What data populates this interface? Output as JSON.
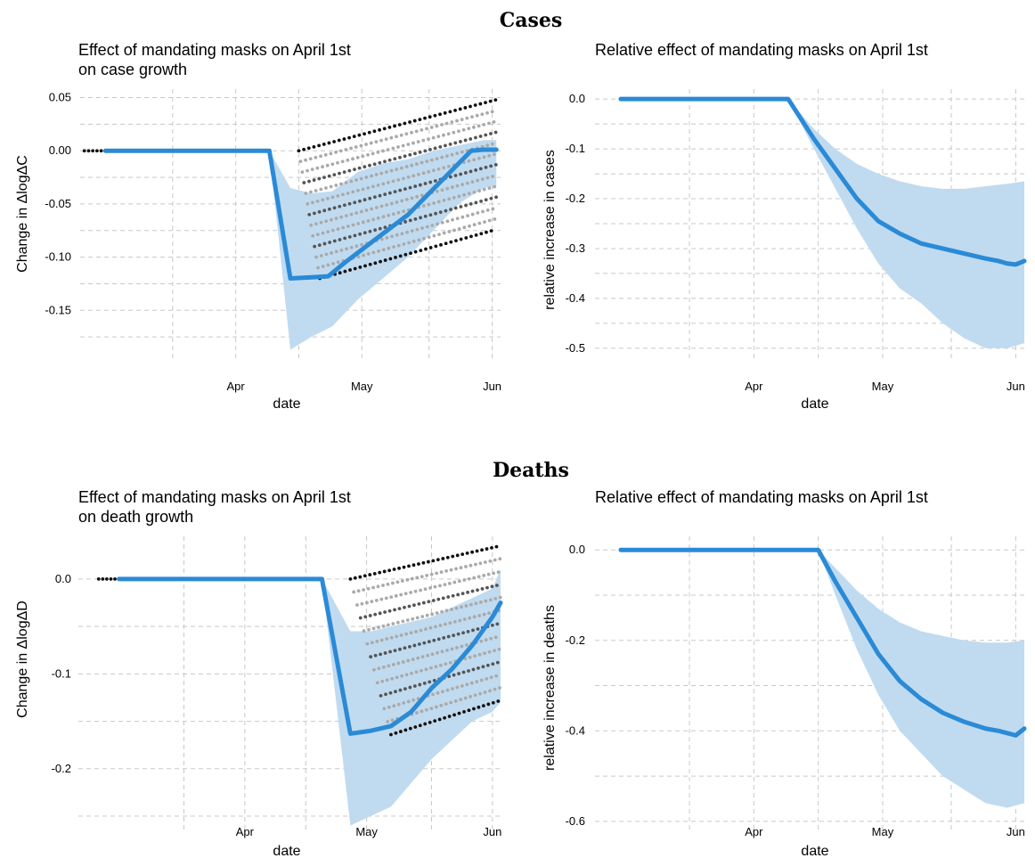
{
  "sections": [
    {
      "title": "Cases"
    },
    {
      "title": "Deaths"
    }
  ],
  "chart_data": [
    {
      "type": "line",
      "title": "Effect of mandating masks on April 1st",
      "subtitle": " on case growth",
      "xlabel": "date",
      "ylabel": "Change in ΔlogΔC",
      "x_ticks": [
        {
          "label": "Apr",
          "day": 31
        },
        {
          "label": "May",
          "day": 61
        },
        {
          "label": "Jun",
          "day": 92
        }
      ],
      "x_range_days": [
        -6,
        94
      ],
      "y_ticks": [
        0.05,
        0.0,
        -0.05,
        -0.1,
        -0.15
      ],
      "y_tick_labels": [
        "0.05",
        "0.00",
        "-0.05",
        "-0.10",
        "-0.15"
      ],
      "ylim": [
        -0.195,
        0.058
      ],
      "grid": true,
      "series": [
        {
          "role": "mean",
          "x_days": [
            0,
            39,
            44,
            49,
            53,
            57,
            62,
            67,
            72,
            77,
            82,
            87,
            90,
            93
          ],
          "y": [
            0.0,
            0.0,
            -0.12,
            -0.119,
            -0.118,
            -0.105,
            -0.09,
            -0.075,
            -0.06,
            -0.04,
            -0.02,
            0.0,
            0.001,
            0.001
          ]
        },
        {
          "role": "band",
          "x_days": [
            39,
            44,
            49,
            54,
            60,
            66,
            72,
            78,
            84,
            90,
            93
          ],
          "upper": [
            0.0,
            -0.035,
            -0.04,
            -0.038,
            -0.02,
            -0.012,
            -0.008,
            0.0,
            0.005,
            0.01,
            0.01
          ],
          "lower": [
            0.0,
            -0.187,
            -0.175,
            -0.165,
            -0.14,
            -0.12,
            -0.1,
            -0.075,
            -0.05,
            -0.035,
            -0.033
          ]
        },
        {
          "role": "scatter-top",
          "x_days": [
            51,
            93
          ],
          "y": [
            0.0,
            0.048
          ]
        },
        {
          "role": "scatter-bottom",
          "x_days": [
            46,
            93
          ],
          "y": [
            -0.12,
            -0.074
          ]
        }
      ]
    },
    {
      "type": "line",
      "title": "Relative effect of mandating masks on April 1st",
      "subtitle": "",
      "xlabel": "date",
      "ylabel": "relative increase in cases",
      "x_ticks": [
        {
          "label": "Apr",
          "day": 31
        },
        {
          "label": "May",
          "day": 61
        },
        {
          "label": "Jun",
          "day": 92
        }
      ],
      "x_range_days": [
        -6,
        94
      ],
      "y_ticks": [
        0.0,
        -0.1,
        -0.2,
        -0.3,
        -0.4,
        -0.5
      ],
      "y_tick_labels": [
        "0.0",
        "-0.1",
        "-0.2",
        "-0.3",
        "-0.4",
        "-0.5"
      ],
      "ylim": [
        -0.52,
        0.02
      ],
      "grid": true,
      "series": [
        {
          "role": "mean",
          "x_days": [
            0,
            39,
            42,
            45,
            50,
            55,
            60,
            65,
            70,
            75,
            80,
            85,
            88,
            90,
            92,
            94
          ],
          "y": [
            0.0,
            0.0,
            -0.04,
            -0.08,
            -0.14,
            -0.2,
            -0.245,
            -0.27,
            -0.29,
            -0.3,
            -0.31,
            -0.32,
            -0.325,
            -0.33,
            -0.332,
            -0.325
          ]
        },
        {
          "role": "band",
          "x_days": [
            39,
            45,
            50,
            55,
            60,
            65,
            70,
            75,
            80,
            85,
            90,
            94
          ],
          "upper": [
            0.0,
            -0.06,
            -0.1,
            -0.13,
            -0.15,
            -0.165,
            -0.175,
            -0.18,
            -0.18,
            -0.175,
            -0.17,
            -0.165
          ],
          "lower": [
            0.0,
            -0.1,
            -0.18,
            -0.26,
            -0.33,
            -0.38,
            -0.41,
            -0.45,
            -0.48,
            -0.5,
            -0.5,
            -0.49
          ]
        }
      ]
    },
    {
      "type": "line",
      "title": "Effect of mandating masks on April 1st",
      "subtitle": " on death growth",
      "xlabel": "date",
      "ylabel": "Change in ΔlogΔD",
      "x_ticks": [
        {
          "label": "Apr",
          "day": 31
        },
        {
          "label": "May",
          "day": 61
        },
        {
          "label": "Jun",
          "day": 92
        }
      ],
      "x_range_days": [
        -10,
        94
      ],
      "y_ticks": [
        0.0,
        -0.1,
        -0.2
      ],
      "y_tick_labels": [
        "0.0",
        "-0.1",
        "-0.2"
      ],
      "ylim": [
        -0.265,
        0.045
      ],
      "grid": true,
      "series": [
        {
          "role": "mean",
          "x_days": [
            0,
            50,
            57,
            62,
            67,
            72,
            77,
            82,
            87,
            92,
            94
          ],
          "y": [
            0.0,
            0.0,
            -0.163,
            -0.16,
            -0.155,
            -0.14,
            -0.115,
            -0.095,
            -0.07,
            -0.04,
            -0.025
          ]
        },
        {
          "role": "band",
          "x_days": [
            50,
            57,
            62,
            67,
            72,
            77,
            82,
            87,
            92,
            94
          ],
          "upper": [
            0.0,
            -0.055,
            -0.055,
            -0.05,
            -0.045,
            -0.04,
            -0.03,
            -0.02,
            -0.01,
            0.01
          ],
          "lower": [
            0.0,
            -0.26,
            -0.25,
            -0.24,
            -0.215,
            -0.19,
            -0.17,
            -0.15,
            -0.14,
            -0.13
          ]
        },
        {
          "role": "scatter-top",
          "x_days": [
            67,
            94
          ],
          "y": [
            0.0,
            0.035
          ]
        },
        {
          "role": "scatter-bottom",
          "x_days": [
            57,
            94
          ],
          "y": [
            -0.164,
            -0.128
          ]
        }
      ]
    },
    {
      "type": "line",
      "title": "Relative effect of mandating masks on April 1st",
      "subtitle": "",
      "xlabel": "date",
      "ylabel": "relative increase in deaths",
      "x_ticks": [
        {
          "label": "Apr",
          "day": 31
        },
        {
          "label": "May",
          "day": 61
        },
        {
          "label": "Jun",
          "day": 92
        }
      ],
      "x_range_days": [
        -6,
        94
      ],
      "y_ticks": [
        0.0,
        -0.2,
        -0.4,
        -0.6
      ],
      "y_tick_labels": [
        "0.0",
        "-0.2",
        "-0.4",
        "-0.6"
      ],
      "ylim": [
        -0.62,
        0.03
      ],
      "grid": true,
      "series": [
        {
          "role": "mean",
          "x_days": [
            0,
            46,
            50,
            55,
            60,
            65,
            70,
            75,
            80,
            85,
            88,
            90,
            92,
            94
          ],
          "y": [
            0.0,
            0.0,
            -0.07,
            -0.15,
            -0.23,
            -0.29,
            -0.33,
            -0.36,
            -0.38,
            -0.395,
            -0.4,
            -0.405,
            -0.41,
            -0.395
          ]
        },
        {
          "role": "band",
          "x_days": [
            46,
            50,
            55,
            60,
            65,
            70,
            75,
            80,
            85,
            90,
            94
          ],
          "upper": [
            0.0,
            -0.04,
            -0.09,
            -0.13,
            -0.16,
            -0.18,
            -0.19,
            -0.2,
            -0.205,
            -0.205,
            -0.2
          ]
        },
        {
          "role": "band-lower",
          "x_days": [
            46,
            50,
            55,
            60,
            65,
            70,
            75,
            80,
            85,
            90,
            94
          ],
          "y": [
            0.0,
            -0.1,
            -0.22,
            -0.32,
            -0.4,
            -0.45,
            -0.5,
            -0.53,
            -0.56,
            -0.57,
            -0.56
          ]
        }
      ]
    }
  ]
}
